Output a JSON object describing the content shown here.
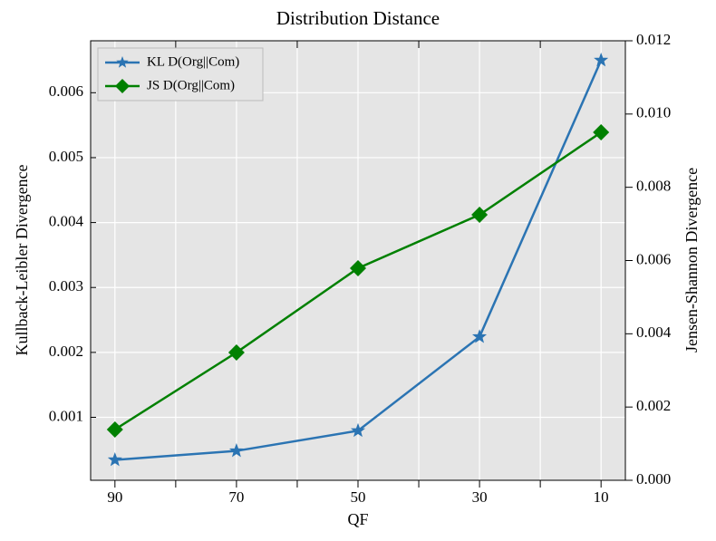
{
  "chart_data": {
    "type": "line",
    "title": "Distribution Distance",
    "x_label": "QF",
    "y_label": "Kullback-Leibler Divergence",
    "y2_label": "Jensen-Shannon Divergence",
    "x": [
      90,
      70,
      50,
      30,
      10
    ],
    "xlim": [
      94,
      6
    ],
    "xticks": [
      90,
      70,
      50,
      30,
      10
    ],
    "xminorticks": [
      80,
      60,
      40,
      20
    ],
    "ylim": [
      3e-05,
      0.0068
    ],
    "yticks": [
      0.001,
      0.002,
      0.003,
      0.004,
      0.005,
      0.006
    ],
    "y2lim": [
      0,
      0.012
    ],
    "y2ticks": [
      {
        "value": 0,
        "label": "0.000"
      },
      0.002,
      0.004,
      0.006,
      0.008,
      {
        "value": 0.01,
        "label": "0.010"
      },
      0.012
    ],
    "grid": true,
    "legend": "upper left",
    "series": [
      {
        "name": "KL D(Org||Com)",
        "color": "#2b74b3",
        "marker": "star",
        "values": [
          0.000344,
          0.000483,
          0.000793,
          0.00224,
          0.0065
        ]
      },
      {
        "name": "JS D(Org||Com)",
        "color": "#008000",
        "marker": "diamond",
        "axis": "y2",
        "values": [
          0.001386,
          0.00349,
          0.00579,
          0.00725,
          0.0095
        ]
      }
    ]
  }
}
